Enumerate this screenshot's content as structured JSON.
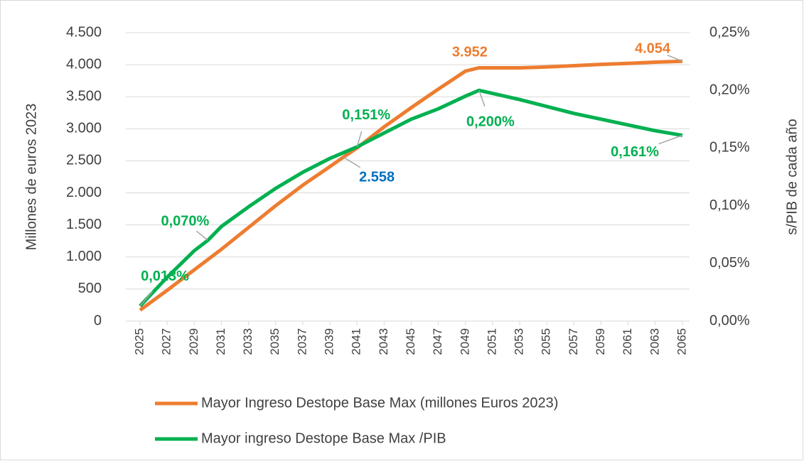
{
  "chart_data": {
    "type": "line",
    "y_axis_label": "Millones de euros 2023",
    "y2_axis_label": "s/PIB de cada año",
    "xlim": [
      2025,
      2065
    ],
    "xticks": [
      2025,
      2027,
      2029,
      2031,
      2033,
      2035,
      2037,
      2039,
      2041,
      2043,
      2045,
      2047,
      2049,
      2051,
      2053,
      2055,
      2057,
      2059,
      2061,
      2063,
      2065
    ],
    "ylim": [
      0,
      4500
    ],
    "yticks": [
      0,
      500,
      {
        "value": 1000,
        "label": "1.000"
      },
      {
        "value": 1500,
        "label": "1.500"
      },
      {
        "value": 2000,
        "label": "2.000"
      },
      {
        "value": 2500,
        "label": "2.500"
      },
      {
        "value": 3000,
        "label": "3.000"
      },
      {
        "value": 3500,
        "label": "3.500"
      },
      {
        "value": 4000,
        "label": "4.000"
      },
      {
        "value": 4500,
        "label": "4.500"
      }
    ],
    "y2lim": [
      0,
      0.25
    ],
    "y2ticks": [
      {
        "value": 0,
        "label": "0,00%"
      },
      {
        "value": 0.05,
        "label": "0,05%"
      },
      {
        "value": 0.1,
        "label": "0,10%"
      },
      {
        "value": 0.15,
        "label": "0,15%"
      },
      {
        "value": 0.2,
        "label": "0,20%"
      },
      {
        "value": 0.25,
        "label": "0,25%"
      }
    ],
    "grid": true,
    "legend": "bottom",
    "series": [
      {
        "name": "Mayor Ingreso Destope Base Max (millones Euros 2023)",
        "color": "#ed7d31",
        "x": [
          2025,
          2027,
          2029,
          2031,
          2033,
          2035,
          2037,
          2039,
          2040,
          2041,
          2043,
          2045,
          2047,
          2049,
          2050,
          2053,
          2055,
          2057,
          2059,
          2061,
          2063,
          2065
        ],
        "values": [
          170,
          480,
          800,
          1120,
          1460,
          1800,
          2120,
          2410,
          2558,
          2700,
          3030,
          3330,
          3620,
          3900,
          3952,
          3952,
          3965,
          3985,
          4005,
          4020,
          4040,
          4054
        ],
        "value_labels": [
          null,
          null,
          null,
          null,
          null,
          null,
          null,
          null,
          "2.558",
          null,
          null,
          null,
          null,
          null,
          "3.952",
          null,
          null,
          null,
          null,
          null,
          null,
          "4.054"
        ],
        "value_label_colors": [
          null,
          null,
          null,
          null,
          null,
          null,
          null,
          null,
          "#0070c0",
          null,
          null,
          null,
          null,
          null,
          "#ed7d31",
          null,
          null,
          null,
          null,
          null,
          null,
          "#ed7d31"
        ]
      },
      {
        "name": "Mayor ingreso Destope Base Max /PIB",
        "color": "#00b050",
        "axis": "y2",
        "x": [
          2025,
          2027,
          2029,
          2030,
          2031,
          2033,
          2035,
          2037,
          2039,
          2041,
          2043,
          2045,
          2047,
          2049,
          2050,
          2053,
          2055,
          2057,
          2059,
          2061,
          2063,
          2065
        ],
        "values": [
          0.013,
          0.038,
          0.061,
          0.07,
          0.082,
          0.099,
          0.115,
          0.129,
          0.141,
          0.151,
          0.163,
          0.175,
          0.184,
          0.195,
          0.2,
          0.192,
          0.186,
          0.18,
          0.175,
          0.17,
          0.165,
          0.161
        ],
        "value_labels": [
          "0,013%",
          null,
          null,
          "0,070%",
          null,
          null,
          null,
          null,
          null,
          "0,151%",
          null,
          null,
          null,
          null,
          "0,200%",
          null,
          null,
          null,
          null,
          null,
          null,
          "0,161%"
        ],
        "value_label_colors": [
          "#00b050",
          null,
          null,
          "#00b050",
          null,
          null,
          null,
          null,
          null,
          "#00b050",
          null,
          null,
          null,
          null,
          "#00b050",
          null,
          null,
          null,
          null,
          null,
          null,
          "#00b050"
        ]
      }
    ]
  }
}
